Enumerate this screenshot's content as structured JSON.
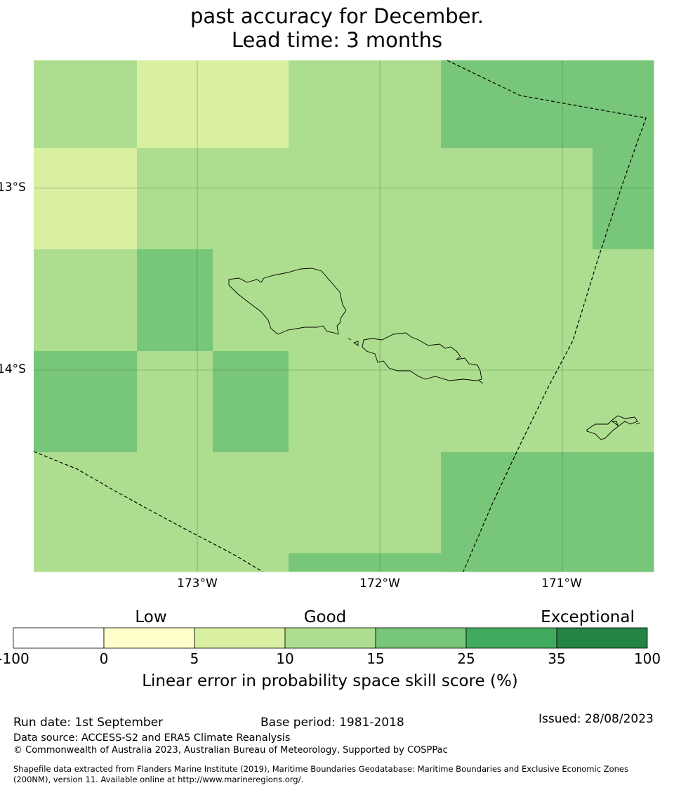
{
  "title": {
    "line1": "past accuracy for December.",
    "line2": "Lead time: 3 months"
  },
  "map": {
    "lat_labels": [
      "13°S",
      "14°S"
    ],
    "lon_labels": [
      "173°W",
      "172°W",
      "171°W"
    ],
    "grid": [
      [
        10,
        5,
        5,
        10,
        15,
        15
      ],
      [
        5,
        10,
        10,
        10,
        10,
        15
      ],
      [
        10,
        15,
        10,
        10,
        10,
        10
      ],
      [
        15,
        10,
        15,
        10,
        10,
        10
      ],
      [
        10,
        10,
        10,
        10,
        15,
        15
      ]
    ],
    "colors": {
      "5": "#d9efa2",
      "10": "#addd8e",
      "15": "#78c679"
    }
  },
  "colorbar": {
    "categories": [
      "Low",
      "Good",
      "Exceptional"
    ],
    "ticks": [
      "-100",
      "0",
      "5",
      "10",
      "15",
      "25",
      "35",
      "100"
    ],
    "colors": [
      "#ffffff",
      "#ffffcc",
      "#d9f0a3",
      "#addd8e",
      "#78c679",
      "#41ab5d",
      "#238443"
    ],
    "label": "Linear error in probability space skill score (%)"
  },
  "footer": {
    "run_date": "Run date: 1st September",
    "base_period": "Base period: 1981-2018",
    "issued": "Issued: 28/08/2023",
    "data_source": "Data source: ACCESS-S2 and ERA5 Climate Reanalysis",
    "copyright": "© Commonwealth of Australia 2023, Australian Bureau of Meteorology, Supported by COSPPac",
    "shapefile_line1": "Shapefile data extracted from Flanders Marine Institute (2019), Maritime Boundaries Geodatabase: Maritime Boundaries and Exclusive Economic Zones",
    "shapefile_line2": "(200NM), version 11. Available online at http://www.marineregions.org/."
  }
}
